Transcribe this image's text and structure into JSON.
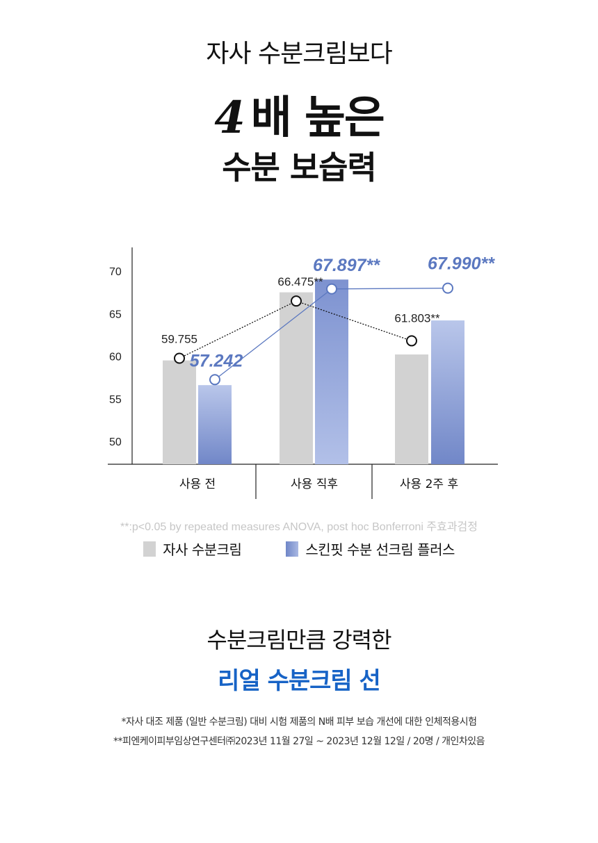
{
  "headline": {
    "line1": "자사 수분크림보다",
    "line2_number": "4",
    "line2_text": "배 높은",
    "line3": "수분 보습력"
  },
  "chart_data": {
    "type": "bar",
    "categories": [
      "사용 전",
      "사용 직후",
      "사용 2주 후"
    ],
    "ylim": [
      50,
      70
    ],
    "yticks": [
      50,
      55,
      60,
      65,
      70
    ],
    "series": [
      {
        "name": "자사 수분크림",
        "color": "#d2d2d2",
        "values": [
          59.5,
          67.5,
          60.2
        ],
        "line_values": [
          59.755,
          66.475,
          61.803
        ],
        "labels": [
          "59.755",
          "66.475**",
          "61.803**"
        ]
      },
      {
        "name": "스킨핏 수분 선크림 플러스",
        "color": "#7f93cf",
        "values": [
          56.6,
          69.0,
          64.2
        ],
        "line_values": [
          57.242,
          67.897,
          67.99
        ],
        "labels": [
          "57.242",
          "67.897**",
          "67.990**"
        ]
      }
    ]
  },
  "footnote": "**:p<0.05 by repeated measures ANOVA, post hoc Bonferroni 주효과검정",
  "subhead": {
    "line1": "수분크림만큼 강력한",
    "line2": "리얼 수분크림 선"
  },
  "notes": {
    "line1": "*자사 대조 제품 (일반 수분크림) 대비 시험 제품의 N배 피부 보습 개선에 대한 인체적용시험",
    "line2": "**피엔케이피부임상연구센터㈜2023년 11월 27일 ~ 2023년 12월 12일 / 20명 / 개인차있음"
  }
}
